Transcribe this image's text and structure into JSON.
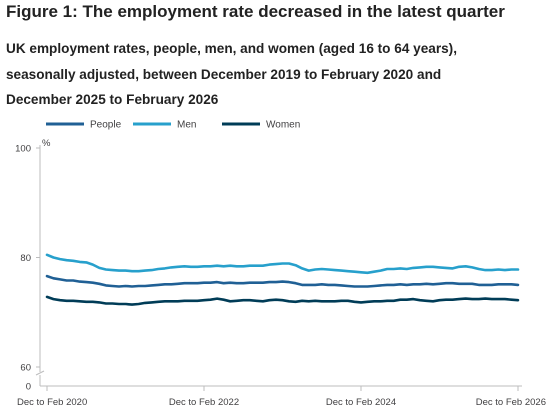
{
  "figure": {
    "title": "Figure 1: The employment rate decreased in the latest quarter",
    "subtitle_lines": [
      "UK employment rates, people, men, and women (aged 16 to 64 years),",
      "seasonally adjusted, between December 2019 to February 2020 and",
      "December 2025 to February 2026"
    ]
  },
  "chart_data": {
    "type": "line",
    "title": "Figure 1: The employment rate decreased in the latest quarter",
    "subtitle": "UK employment rates, people, men, and women (aged 16 to 64 years), seasonally adjusted, between December 2019 to February 2020 and December 2025 to February 2026",
    "ylabel": "%",
    "xlabel": "",
    "ylim": [
      60,
      100
    ],
    "y_axis_break": true,
    "y_axis_zero_label": "0",
    "yticks": [
      60,
      80,
      100
    ],
    "grid": false,
    "legend_position": "top-left",
    "x_tick_labels": [
      "Dec to Feb 2020",
      "Dec to Feb 2022",
      "Dec to Feb 2024",
      "Dec to Feb 2026"
    ],
    "x_tick_indices": [
      0,
      24,
      48,
      72
    ],
    "series": [
      {
        "name": "People",
        "color": "#206095",
        "values": [
          76.6,
          76.2,
          76.0,
          75.8,
          75.8,
          75.6,
          75.5,
          75.4,
          75.2,
          74.9,
          74.8,
          74.7,
          74.8,
          74.7,
          74.8,
          74.8,
          74.9,
          75.0,
          75.1,
          75.1,
          75.2,
          75.3,
          75.3,
          75.3,
          75.4,
          75.4,
          75.5,
          75.3,
          75.4,
          75.3,
          75.3,
          75.4,
          75.4,
          75.4,
          75.5,
          75.5,
          75.6,
          75.5,
          75.3,
          75.0,
          75.0,
          75.0,
          75.1,
          75.0,
          75.0,
          74.9,
          74.8,
          74.7,
          74.7,
          74.7,
          74.8,
          74.9,
          75.0,
          75.0,
          75.1,
          75.0,
          75.1,
          75.1,
          75.2,
          75.1,
          75.2,
          75.3,
          75.3,
          75.2,
          75.2,
          75.2,
          75.0,
          75.0,
          75.0,
          75.1,
          75.1,
          75.1,
          75.0
        ]
      },
      {
        "name": "Men",
        "color": "#27a0cc",
        "values": [
          80.5,
          80.0,
          79.7,
          79.5,
          79.4,
          79.2,
          79.1,
          78.7,
          78.1,
          77.8,
          77.7,
          77.6,
          77.6,
          77.5,
          77.5,
          77.6,
          77.7,
          77.9,
          78.0,
          78.2,
          78.3,
          78.4,
          78.3,
          78.3,
          78.4,
          78.4,
          78.5,
          78.4,
          78.5,
          78.4,
          78.4,
          78.5,
          78.5,
          78.5,
          78.7,
          78.8,
          78.9,
          78.9,
          78.6,
          78.0,
          77.6,
          77.8,
          77.9,
          77.8,
          77.7,
          77.6,
          77.5,
          77.4,
          77.3,
          77.2,
          77.4,
          77.6,
          77.9,
          77.9,
          78.0,
          77.9,
          78.1,
          78.2,
          78.3,
          78.3,
          78.2,
          78.1,
          78.0,
          78.3,
          78.4,
          78.2,
          77.9,
          77.7,
          77.7,
          77.8,
          77.7,
          77.8,
          77.8
        ]
      },
      {
        "name": "Women",
        "color": "#003c57",
        "values": [
          72.8,
          72.4,
          72.2,
          72.1,
          72.1,
          72.0,
          71.9,
          71.9,
          71.8,
          71.6,
          71.6,
          71.5,
          71.5,
          71.4,
          71.5,
          71.7,
          71.8,
          71.9,
          72.0,
          72.0,
          72.0,
          72.1,
          72.1,
          72.1,
          72.2,
          72.3,
          72.5,
          72.3,
          72.0,
          72.1,
          72.2,
          72.2,
          72.1,
          72.0,
          72.2,
          72.3,
          72.2,
          72.0,
          71.9,
          72.1,
          72.0,
          72.1,
          72.0,
          72.0,
          72.0,
          72.1,
          72.1,
          71.9,
          71.8,
          71.9,
          72.0,
          72.0,
          72.1,
          72.1,
          72.3,
          72.3,
          72.4,
          72.2,
          72.1,
          72.0,
          72.2,
          72.3,
          72.3,
          72.4,
          72.5,
          72.4,
          72.4,
          72.5,
          72.4,
          72.4,
          72.4,
          72.3,
          72.2
        ]
      }
    ]
  }
}
